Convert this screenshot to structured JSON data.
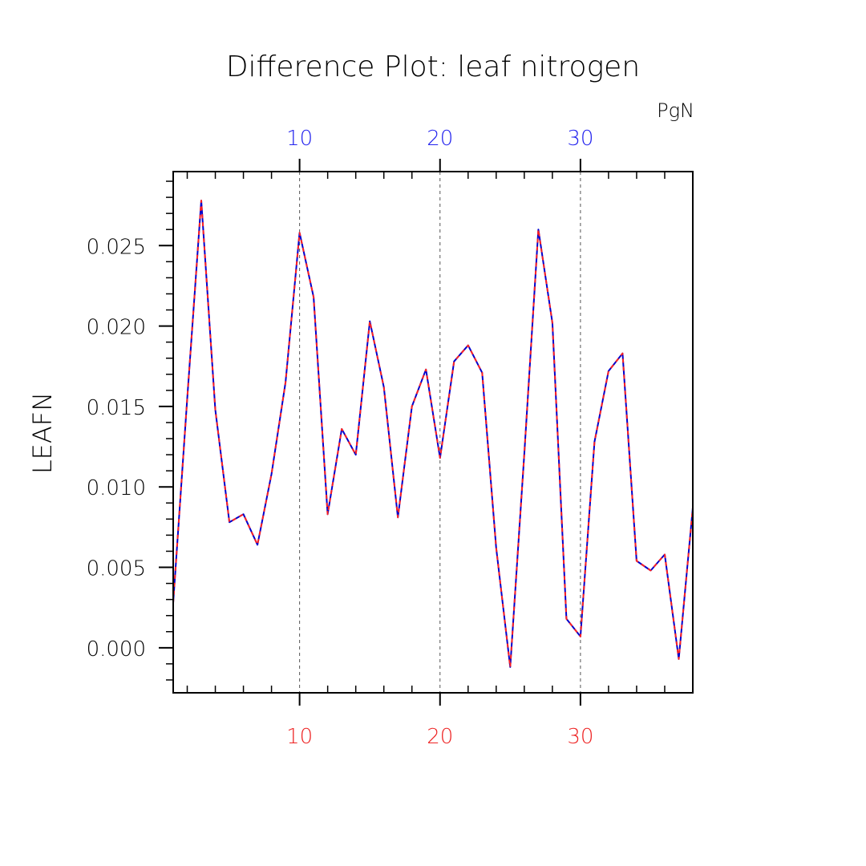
{
  "chart_data": {
    "type": "line",
    "title": "Difference Plot: leaf nitrogen",
    "units": "PgN",
    "ylabel": "LEAFN",
    "xlim": [
      1,
      38
    ],
    "ylim": [
      -0.0028,
      0.0296
    ],
    "x_ticks": [
      10,
      20,
      30
    ],
    "x_tick_labels": [
      "10",
      "20",
      "30"
    ],
    "y_ticks": [
      0.0,
      0.005,
      0.01,
      0.015,
      0.02,
      0.025
    ],
    "y_tick_labels": [
      "0.000",
      "0.005",
      "0.010",
      "0.015",
      "0.020",
      "0.025"
    ],
    "top_axis_color": "#2222ee",
    "bottom_axis_color": "#ee2222",
    "grid": "vertical dashed at major x ticks",
    "x": [
      1,
      2,
      3,
      4,
      5,
      6,
      7,
      8,
      9,
      10,
      11,
      12,
      13,
      14,
      15,
      16,
      17,
      18,
      19,
      20,
      21,
      22,
      23,
      24,
      25,
      26,
      27,
      28,
      29,
      30,
      31,
      32,
      33,
      34,
      35,
      36,
      37,
      38
    ],
    "series": [
      {
        "color": "#0000cc",
        "style": "solid",
        "values": [
          0.0028,
          0.0155,
          0.0278,
          0.0148,
          0.0078,
          0.0083,
          0.0064,
          0.0108,
          0.0165,
          0.0258,
          0.0218,
          0.0083,
          0.0136,
          0.012,
          0.0203,
          0.0162,
          0.0081,
          0.015,
          0.0173,
          0.0118,
          0.0178,
          0.0188,
          0.0171,
          0.0062,
          -0.0012,
          0.012,
          0.026,
          0.0202,
          0.0018,
          0.0007,
          0.0128,
          0.0172,
          0.0183,
          0.0054,
          0.0048,
          0.0058,
          -0.0007,
          0.0087
        ]
      },
      {
        "color": "#ff2222",
        "style": "dashed",
        "values": [
          0.0028,
          0.0155,
          0.0278,
          0.0148,
          0.0078,
          0.0083,
          0.0064,
          0.0108,
          0.0165,
          0.0258,
          0.0218,
          0.0083,
          0.0136,
          0.012,
          0.0203,
          0.0162,
          0.0081,
          0.015,
          0.0173,
          0.0118,
          0.0178,
          0.0188,
          0.0171,
          0.0062,
          -0.0012,
          0.012,
          0.026,
          0.0202,
          0.0018,
          0.0007,
          0.0128,
          0.0172,
          0.0183,
          0.0054,
          0.0048,
          0.0058,
          -0.0007,
          0.0087
        ]
      }
    ]
  }
}
